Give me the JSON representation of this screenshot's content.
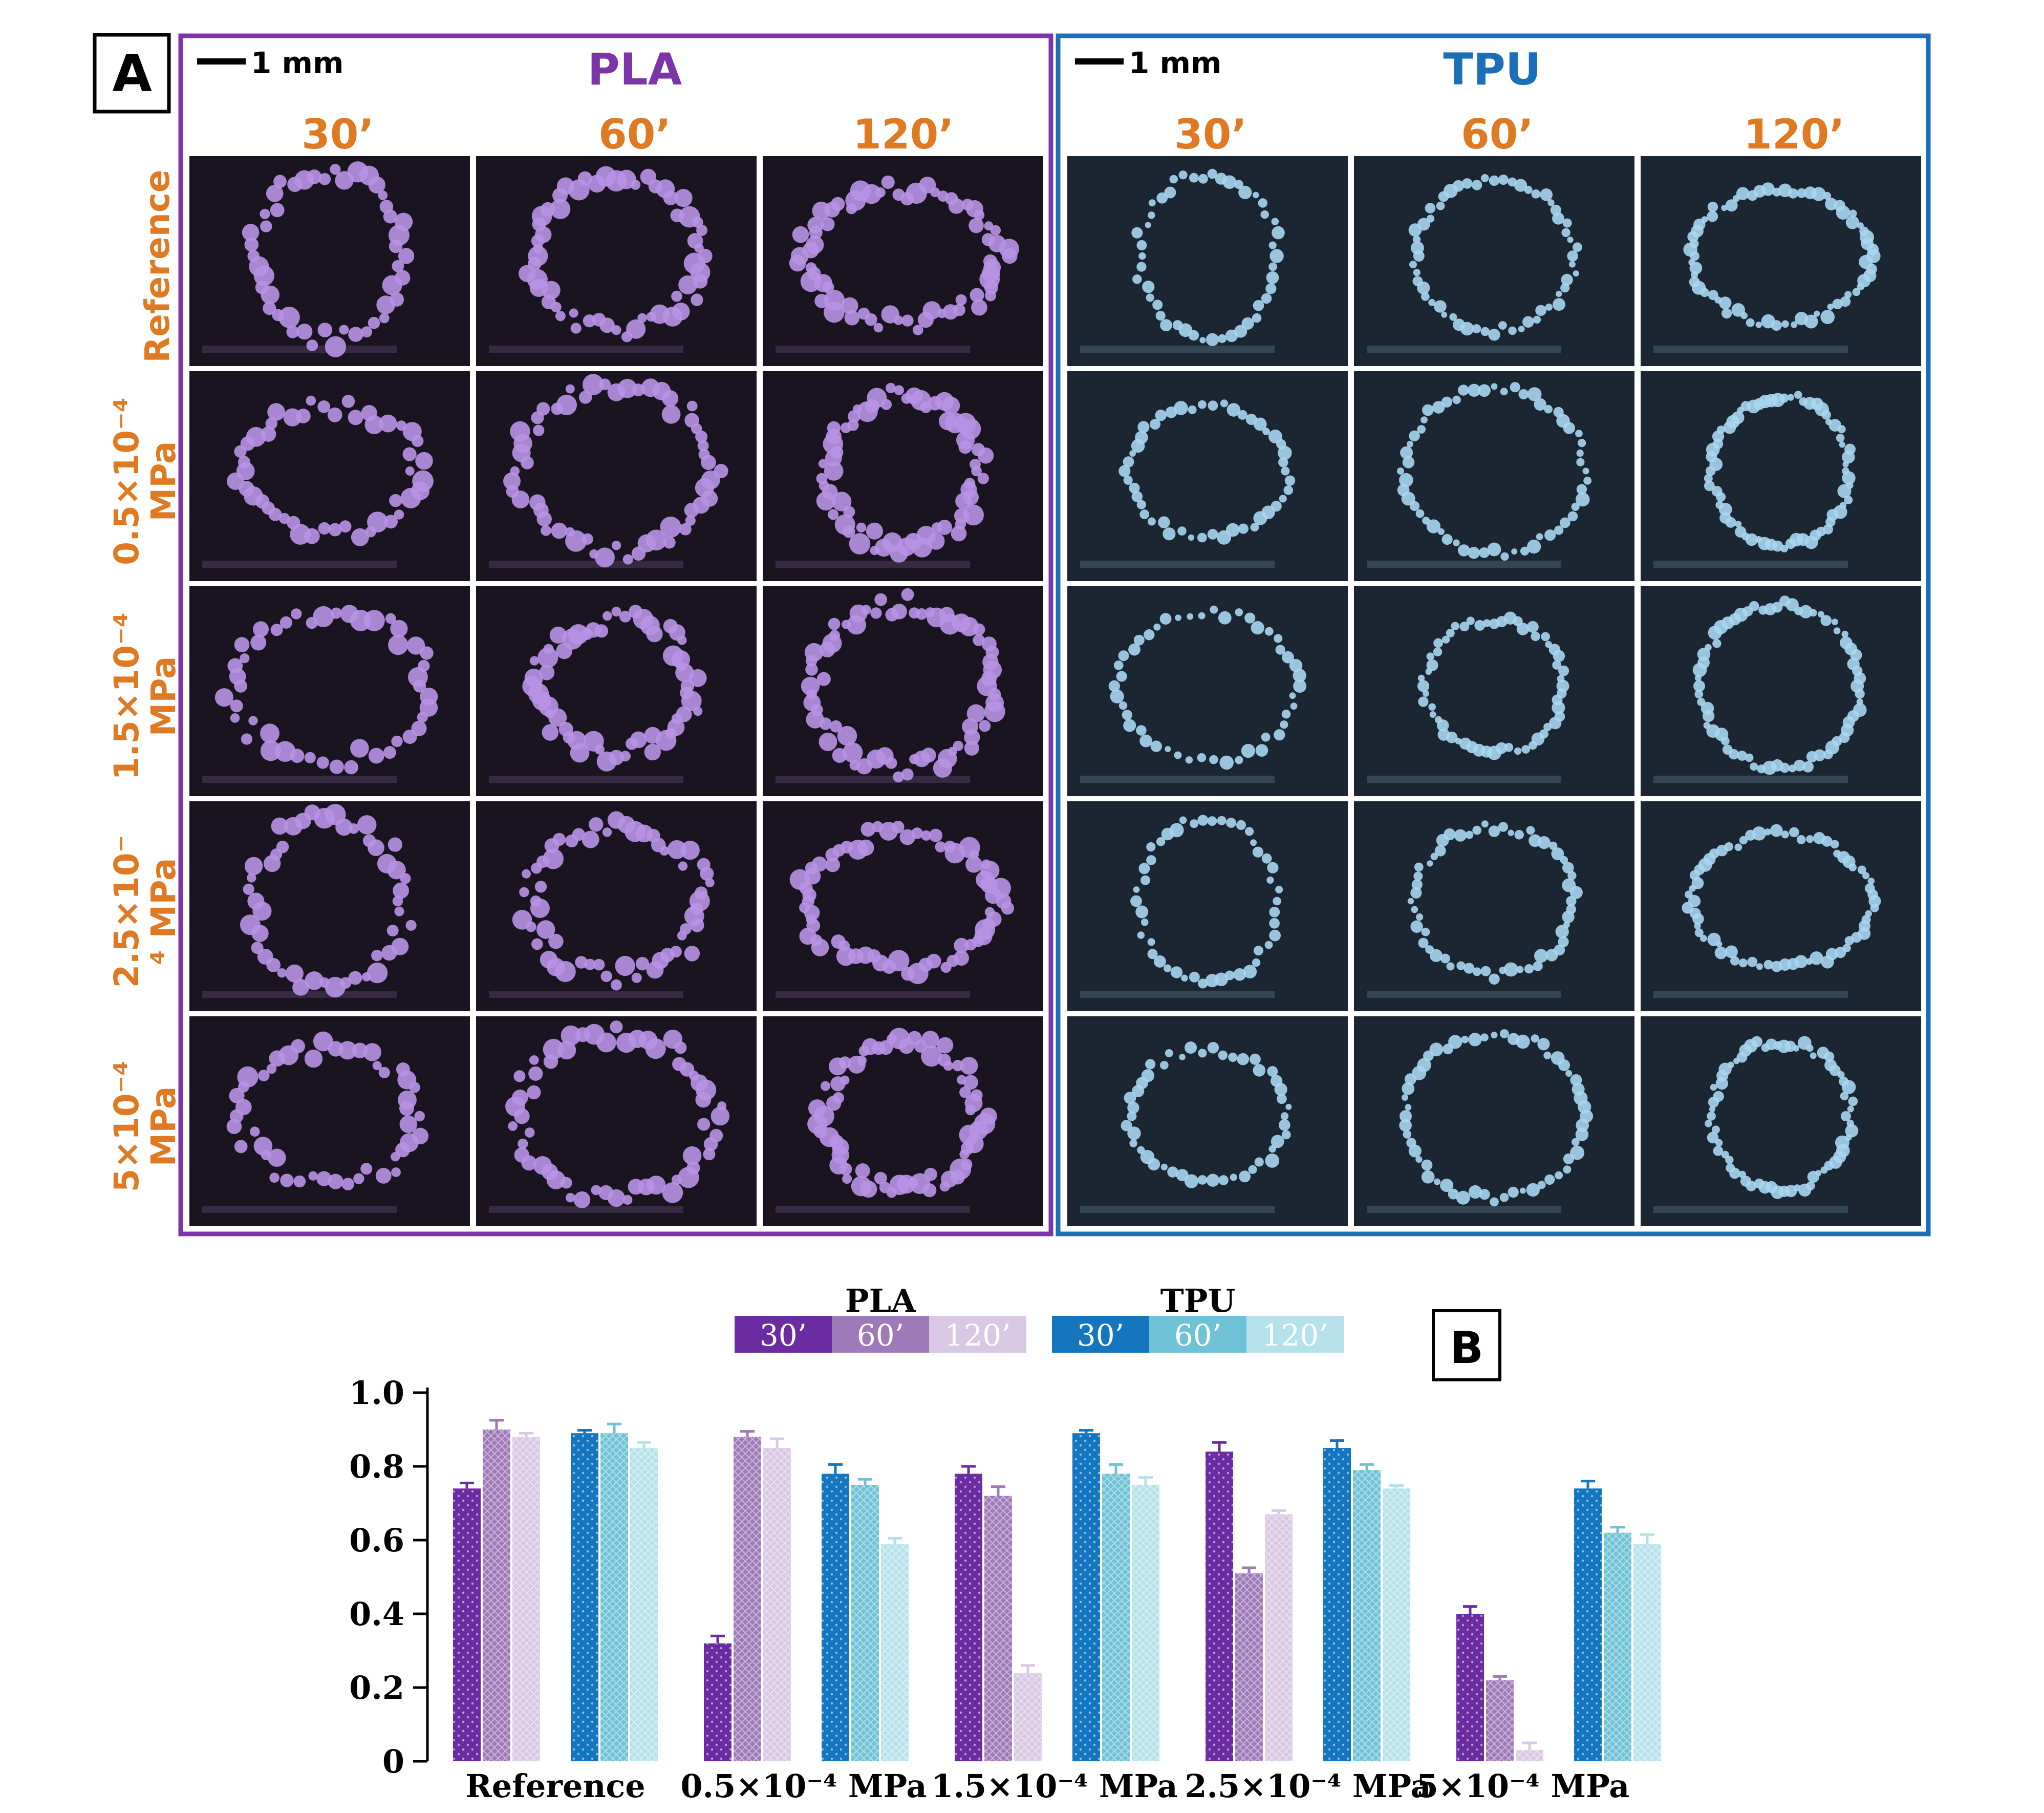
{
  "panel_a": {
    "label": "A",
    "scale_bar_text": "1 mm",
    "materials": [
      {
        "name": "PLA",
        "color": "#7b35a8",
        "tint": "#b893e6",
        "bg": "#1a1320"
      },
      {
        "name": "TPU",
        "color": "#1a6fb8",
        "tint": "#a9d6f0",
        "bg": "#1c2633"
      }
    ],
    "times": [
      "30’",
      "60’",
      "120’"
    ],
    "rows": [
      {
        "lines": [
          "Reference"
        ]
      },
      {
        "lines": [
          "0.5×10⁻⁴",
          "MPa"
        ]
      },
      {
        "lines": [
          "1.5×10⁻⁴",
          "MPa"
        ]
      },
      {
        "lines": [
          "2.5×10⁻",
          "⁴ MPa"
        ]
      },
      {
        "lines": [
          "5×10⁻⁴",
          "MPa"
        ]
      }
    ],
    "label_color": "#e07a22"
  },
  "chart_data": {
    "type": "bar",
    "panel_label": "B",
    "categories": [
      "Reference",
      "0.5×10⁻⁴ MPa",
      "1.5×10⁻⁴ MPa",
      "2.5×10⁻⁴ MPa",
      "5×10⁻⁴ MPa"
    ],
    "ylim": [
      0,
      1.0
    ],
    "yticks": [
      "0",
      "0.2",
      "0.4",
      "0.6",
      "0.8",
      "1.0"
    ],
    "xlabel": "",
    "ylabel": "",
    "legend": {
      "groups": [
        {
          "name": "PLA",
          "entries": [
            {
              "label": "30’",
              "color": "#6a2ca0"
            },
            {
              "label": "60’",
              "color": "#9f7ab8"
            },
            {
              "label": "120’",
              "color": "#d9c8e4"
            }
          ]
        },
        {
          "name": "TPU",
          "entries": [
            {
              "label": "30’",
              "color": "#1576c0"
            },
            {
              "label": "60’",
              "color": "#6fc2d6"
            },
            {
              "label": "120’",
              "color": "#b6e1ea"
            }
          ]
        }
      ]
    },
    "series": [
      {
        "name": "PLA 30’",
        "color": "#6a2ca0",
        "values": [
          0.74,
          0.32,
          0.78,
          0.84,
          0.4
        ],
        "errors": [
          0.015,
          0.02,
          0.02,
          0.025,
          0.02
        ]
      },
      {
        "name": "PLA 60’",
        "color": "#9f7ab8",
        "values": [
          0.9,
          0.88,
          0.72,
          0.51,
          0.22
        ],
        "errors": [
          0.025,
          0.015,
          0.025,
          0.015,
          0.01
        ]
      },
      {
        "name": "PLA 120’",
        "color": "#d9c8e4",
        "values": [
          0.88,
          0.85,
          0.24,
          0.67,
          0.03
        ],
        "errors": [
          0.01,
          0.025,
          0.02,
          0.01,
          0.02
        ]
      },
      {
        "name": "TPU 30’",
        "color": "#1576c0",
        "values": [
          0.89,
          0.78,
          0.89,
          0.85,
          0.74
        ],
        "errors": [
          0.008,
          0.025,
          0.008,
          0.02,
          0.02
        ]
      },
      {
        "name": "TPU 60’",
        "color": "#6fc2d6",
        "values": [
          0.89,
          0.75,
          0.78,
          0.79,
          0.62
        ],
        "errors": [
          0.025,
          0.015,
          0.025,
          0.015,
          0.015
        ]
      },
      {
        "name": "TPU 120’",
        "color": "#b6e1ea",
        "values": [
          0.85,
          0.59,
          0.75,
          0.74,
          0.59
        ],
        "errors": [
          0.015,
          0.015,
          0.02,
          0.008,
          0.025
        ]
      }
    ]
  }
}
